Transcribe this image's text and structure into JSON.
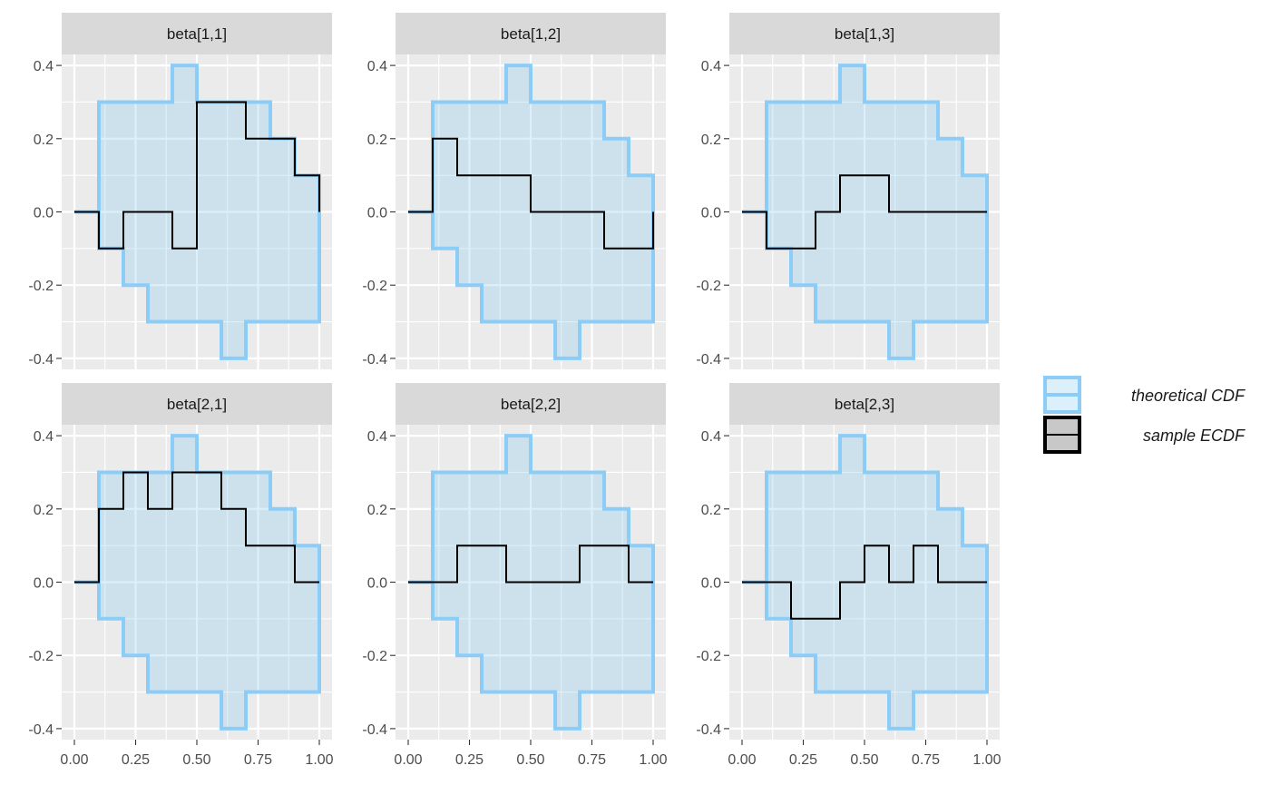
{
  "chart_data": {
    "type": "line",
    "xlim": [
      0,
      1
    ],
    "ylim": [
      -0.43,
      0.43
    ],
    "x_ticks": [
      0,
      0.25,
      0.5,
      0.75,
      1
    ],
    "x_tick_labels": [
      "0.00",
      "0.25",
      "0.50",
      "0.75",
      "1.00"
    ],
    "y_ticks": [
      -0.4,
      -0.2,
      0,
      0.2,
      0.4
    ],
    "y_tick_labels": [
      "-0.4",
      "-0.2",
      "0.0",
      "0.2",
      "0.4"
    ],
    "grid": true,
    "legend_position": "right",
    "legend": {
      "theoretical": "theoretical CDF",
      "sample": "sample ECDF",
      "theoretical_color": "#8ccdf8",
      "sample_color": "#000000"
    },
    "band": {
      "x": [
        0,
        0.1,
        0.2,
        0.3,
        0.4,
        0.5,
        0.6,
        0.7,
        0.8,
        0.9,
        1.0
      ],
      "upper": [
        0,
        0.3,
        0.3,
        0.3,
        0.4,
        0.3,
        0.3,
        0.3,
        0.2,
        0.1,
        0
      ],
      "lower": [
        0,
        -0.1,
        -0.2,
        -0.3,
        -0.3,
        -0.3,
        -0.4,
        -0.3,
        -0.3,
        -0.3,
        -0.3
      ]
    },
    "panels": [
      {
        "title": "beta[1,1]",
        "x": [
          0,
          0.1,
          0.2,
          0.3,
          0.4,
          0.5,
          0.6,
          0.7,
          0.8,
          0.9,
          1.0
        ],
        "y": [
          0,
          -0.1,
          0,
          0,
          -0.1,
          0.3,
          0.3,
          0.2,
          0.2,
          0.1,
          0
        ]
      },
      {
        "title": "beta[1,2]",
        "x": [
          0,
          0.1,
          0.2,
          0.3,
          0.4,
          0.5,
          0.6,
          0.7,
          0.8,
          0.9,
          1.0
        ],
        "y": [
          0,
          0.2,
          0.1,
          0.1,
          0.1,
          0,
          0,
          0,
          -0.1,
          -0.1,
          0
        ]
      },
      {
        "title": "beta[1,3]",
        "x": [
          0,
          0.1,
          0.2,
          0.3,
          0.4,
          0.5,
          0.6,
          0.7,
          0.8,
          0.9,
          1.0
        ],
        "y": [
          0,
          -0.1,
          -0.1,
          0,
          0.1,
          0.1,
          0,
          0,
          0,
          0,
          0
        ]
      },
      {
        "title": "beta[2,1]",
        "x": [
          0,
          0.1,
          0.2,
          0.3,
          0.4,
          0.5,
          0.6,
          0.7,
          0.8,
          0.9,
          1.0
        ],
        "y": [
          0,
          0.2,
          0.3,
          0.2,
          0.3,
          0.3,
          0.2,
          0.1,
          0.1,
          0,
          0
        ]
      },
      {
        "title": "beta[2,2]",
        "x": [
          0,
          0.1,
          0.2,
          0.3,
          0.4,
          0.5,
          0.6,
          0.7,
          0.8,
          0.9,
          1.0
        ],
        "y": [
          0,
          0,
          0.1,
          0.1,
          0,
          0,
          0,
          0.1,
          0.1,
          0,
          0
        ]
      },
      {
        "title": "beta[2,3]",
        "x": [
          0,
          0.1,
          0.2,
          0.3,
          0.4,
          0.5,
          0.6,
          0.7,
          0.8,
          0.9,
          1.0
        ],
        "y": [
          0,
          0,
          -0.1,
          -0.1,
          0,
          0.1,
          0,
          0.1,
          0,
          0,
          0
        ]
      }
    ]
  }
}
